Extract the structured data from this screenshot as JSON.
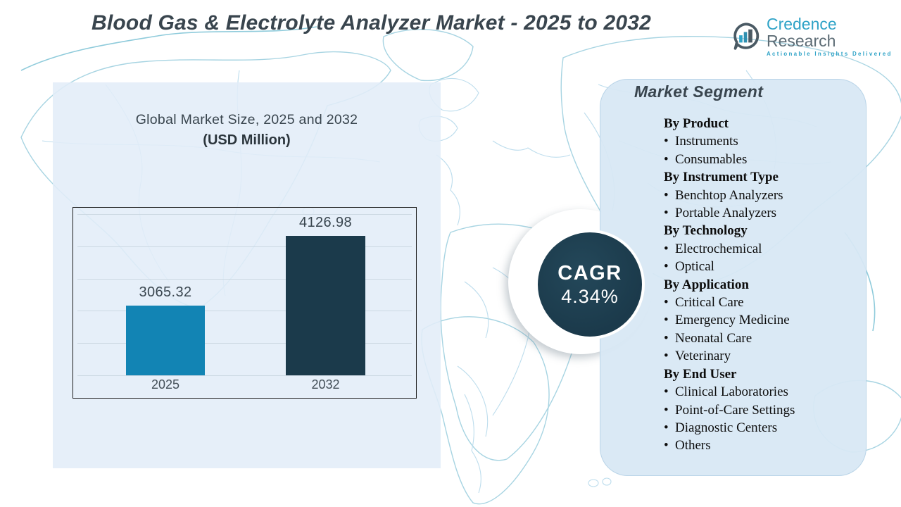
{
  "header": {
    "title": "Blood Gas & Electrolyte Analyzer Market - 2025 to 2032",
    "brand": {
      "name_primary": "Credence",
      "name_secondary": "Research",
      "tagline": "Actionable Insights Delivered",
      "icon": "bar-chart-bubble-icon",
      "color_primary": "#2fa3c7",
      "color_secondary": "#5c6b74"
    }
  },
  "chart": {
    "title": "Global Market Size, 2025 and 2032",
    "subtitle": "(USD Million)"
  },
  "chart_data": {
    "type": "bar",
    "categories": [
      "2025",
      "2032"
    ],
    "values": [
      3065.32,
      4126.98
    ],
    "value_labels": [
      "3065.32",
      "4126.98"
    ],
    "title": "Global Market Size, 2025 and 2032",
    "subtitle": "(USD Million)",
    "xlabel": "",
    "ylabel": "",
    "ylim": [
      2000,
      4500
    ],
    "grid": true,
    "gridline_count": 6,
    "legend": false,
    "bar_colors": [
      "#1284b4",
      "#1b3a4b"
    ]
  },
  "cagr": {
    "label": "CAGR",
    "value": "4.34%",
    "circle_color": "#1b3c4d"
  },
  "segments": {
    "title": "Market Segment",
    "groups": [
      {
        "header": "By Product",
        "items": [
          "Instruments",
          "Consumables"
        ]
      },
      {
        "header": "By Instrument Type",
        "items": [
          "Benchtop Analyzers",
          "Portable Analyzers"
        ]
      },
      {
        "header": "By Technology",
        "items": [
          "Electrochemical",
          "Optical"
        ]
      },
      {
        "header": "By Application",
        "items": [
          "Critical Care",
          "Emergency Medicine",
          "Neonatal Care",
          "Veterinary"
        ]
      },
      {
        "header": "By End User",
        "items": [
          "Clinical Laboratories",
          "Point-of-Care Settings",
          "Diagnostic Centers",
          "Others"
        ]
      }
    ]
  },
  "colors": {
    "panel_left": "#e2edf8",
    "panel_segment": "#d8e8f4",
    "map_line": "#a7d4e2",
    "title_text": "#39454e"
  }
}
